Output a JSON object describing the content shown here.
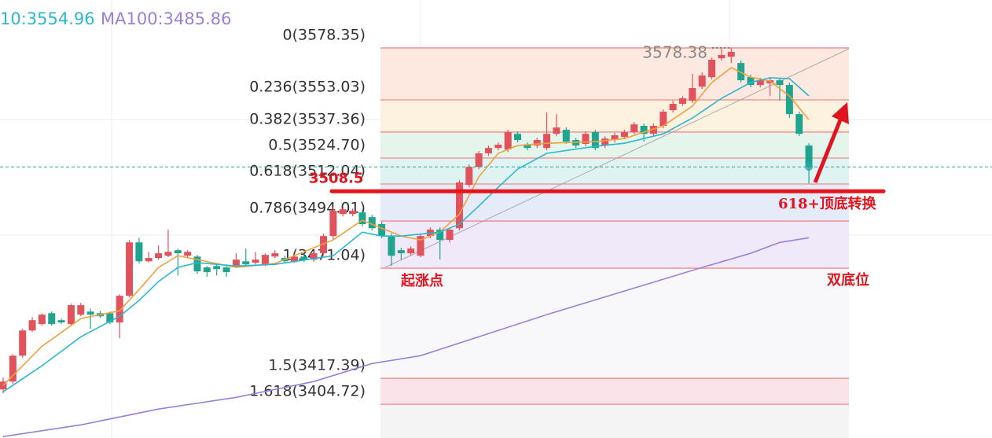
{
  "chart_data": {
    "type": "candlestick",
    "ylim": [
      3388.3,
      3601.7
    ],
    "up_color": "#e0525c",
    "down_color": "#1fa58f",
    "ohlc": [
      [
        3412.0,
        3417.7,
        3410.0,
        3415.8
      ],
      [
        3415.8,
        3429.2,
        3414.6,
        3428.4
      ],
      [
        3428.4,
        3441.5,
        3427.3,
        3440.7
      ],
      [
        3440.7,
        3447.2,
        3439.9,
        3445.7
      ],
      [
        3443.8,
        3449.1,
        3443.0,
        3448.4
      ],
      [
        3449.1,
        3449.9,
        3443.0,
        3443.8
      ],
      [
        3445.7,
        3446.5,
        3443.8,
        3444.6
      ],
      [
        3443.8,
        3453.7,
        3443.0,
        3453.0
      ],
      [
        3448.4,
        3454.1,
        3447.6,
        3453.0
      ],
      [
        3449.9,
        3451.4,
        3441.5,
        3448.4
      ],
      [
        3449.1,
        3450.3,
        3446.8,
        3447.6
      ],
      [
        3449.1,
        3449.9,
        3443.8,
        3444.6
      ],
      [
        3444.6,
        3458.3,
        3436.9,
        3457.6
      ],
      [
        3457.6,
        3484.8,
        3456.8,
        3483.6
      ],
      [
        3483.6,
        3485.9,
        3473.3,
        3474.4
      ],
      [
        3474.4,
        3479.0,
        3473.7,
        3476.0
      ],
      [
        3476.0,
        3482.1,
        3475.2,
        3478.3
      ],
      [
        3477.1,
        3489.8,
        3476.4,
        3479.0
      ],
      [
        3479.8,
        3480.6,
        3467.5,
        3478.3
      ],
      [
        3477.1,
        3479.8,
        3476.4,
        3479.0
      ],
      [
        3476.7,
        3477.5,
        3468.3,
        3469.5
      ],
      [
        3471.4,
        3472.1,
        3466.8,
        3469.1
      ],
      [
        3472.1,
        3472.9,
        3467.5,
        3470.6
      ],
      [
        3471.4,
        3472.9,
        3466.8,
        3469.1
      ],
      [
        3472.1,
        3478.3,
        3471.4,
        3475.2
      ],
      [
        3474.4,
        3480.6,
        3472.1,
        3472.9
      ],
      [
        3473.7,
        3479.0,
        3472.9,
        3475.2
      ],
      [
        3472.9,
        3478.3,
        3472.1,
        3477.5
      ],
      [
        3476.7,
        3479.8,
        3476.0,
        3478.3
      ],
      [
        3476.0,
        3477.1,
        3473.3,
        3474.4
      ],
      [
        3474.4,
        3477.9,
        3473.7,
        3476.7
      ],
      [
        3476.7,
        3477.9,
        3474.1,
        3475.2
      ],
      [
        3475.2,
        3479.4,
        3474.1,
        3478.3
      ],
      [
        3478.3,
        3487.9,
        3477.1,
        3486.7
      ],
      [
        3486.7,
        3501.3,
        3484.8,
        3499.0
      ],
      [
        3497.4,
        3500.9,
        3496.3,
        3499.7
      ],
      [
        3497.4,
        3500.1,
        3496.3,
        3499.0
      ],
      [
        3498.2,
        3499.4,
        3491.3,
        3492.5
      ],
      [
        3495.9,
        3497.1,
        3489.4,
        3490.5
      ],
      [
        3492.5,
        3493.6,
        3485.6,
        3486.7
      ],
      [
        3486.7,
        3487.9,
        3472.1,
        3477.1
      ],
      [
        3479.8,
        3481.0,
        3475.2,
        3478.3
      ],
      [
        3478.3,
        3481.7,
        3477.1,
        3480.6
      ],
      [
        3477.1,
        3487.9,
        3476.4,
        3486.7
      ],
      [
        3486.7,
        3490.9,
        3485.6,
        3489.8
      ],
      [
        3489.8,
        3490.9,
        3475.2,
        3484.8
      ],
      [
        3484.8,
        3490.9,
        3483.6,
        3489.8
      ],
      [
        3490.5,
        3513.9,
        3489.4,
        3512.8
      ],
      [
        3511.6,
        3521.6,
        3510.5,
        3520.4
      ],
      [
        3520.4,
        3528.1,
        3519.3,
        3527.0
      ],
      [
        3527.0,
        3530.8,
        3525.8,
        3529.6
      ],
      [
        3529.6,
        3532.3,
        3528.5,
        3531.2
      ],
      [
        3528.9,
        3538.5,
        3527.7,
        3537.3
      ],
      [
        3536.5,
        3537.7,
        3532.3,
        3533.5
      ],
      [
        3531.2,
        3532.3,
        3528.5,
        3529.6
      ],
      [
        3530.8,
        3534.6,
        3529.6,
        3533.5
      ],
      [
        3529.6,
        3546.9,
        3528.5,
        3536.5
      ],
      [
        3536.5,
        3546.1,
        3535.4,
        3539.6
      ],
      [
        3538.5,
        3539.6,
        3531.6,
        3532.7
      ],
      [
        3533.5,
        3534.6,
        3529.6,
        3530.8
      ],
      [
        3531.6,
        3537.7,
        3530.4,
        3536.5
      ],
      [
        3537.3,
        3538.5,
        3528.5,
        3529.6
      ],
      [
        3530.8,
        3535.4,
        3529.6,
        3534.2
      ],
      [
        3533.5,
        3536.9,
        3532.3,
        3535.8
      ],
      [
        3535.0,
        3538.5,
        3533.9,
        3537.3
      ],
      [
        3537.3,
        3542.3,
        3536.2,
        3541.1
      ],
      [
        3540.4,
        3541.5,
        3532.7,
        3536.5
      ],
      [
        3536.5,
        3541.5,
        3535.4,
        3540.4
      ],
      [
        3540.4,
        3548.4,
        3539.2,
        3547.3
      ],
      [
        3548.0,
        3552.6,
        3546.9,
        3551.1
      ],
      [
        3551.1,
        3554.9,
        3550.0,
        3553.8
      ],
      [
        3552.6,
        3565.7,
        3551.5,
        3558.8
      ],
      [
        3559.5,
        3566.4,
        3558.4,
        3564.9
      ],
      [
        3564.1,
        3573.7,
        3563.0,
        3572.6
      ],
      [
        3573.3,
        3577.9,
        3572.2,
        3574.9
      ],
      [
        3574.1,
        3578.38,
        3571.0,
        3576.4
      ],
      [
        3571.0,
        3572.2,
        3561.5,
        3562.6
      ],
      [
        3564.1,
        3565.3,
        3559.2,
        3560.3
      ],
      [
        3560.3,
        3563.8,
        3559.2,
        3562.6
      ],
      [
        3561.1,
        3563.8,
        3554.9,
        3562.6
      ],
      [
        3562.6,
        3563.8,
        3552.6,
        3560.3
      ],
      [
        3560.3,
        3561.5,
        3544.2,
        3546.1
      ],
      [
        3546.1,
        3547.3,
        3535.4,
        3536.5
      ],
      [
        3530.8,
        3531.9,
        3512.4,
        3520.4
      ]
    ],
    "ma_lines": [
      {
        "color": "#f0a03c",
        "x": [
          0,
          4,
          8,
          12,
          14,
          16,
          18,
          20,
          24,
          28,
          34,
          37,
          39,
          41,
          43,
          45,
          47,
          49,
          51,
          53,
          56,
          61,
          64,
          68,
          71,
          73,
          75,
          77,
          79,
          81,
          83
        ],
        "values": [
          3413.9,
          3433.0,
          3446.5,
          3450.3,
          3460.6,
          3471.4,
          3477.1,
          3475.2,
          3471.4,
          3473.3,
          3484.8,
          3494.4,
          3490.5,
          3486.7,
          3484.8,
          3488.6,
          3497.4,
          3515.5,
          3527.0,
          3530.8,
          3531.9,
          3532.7,
          3534.2,
          3540.4,
          3550.0,
          3561.5,
          3568.7,
          3564.1,
          3562.2,
          3554.9,
          3543.4
        ]
      },
      {
        "name": "10:3554.96",
        "color": "#2bb7cf",
        "x": [
          0,
          4,
          8,
          12,
          14,
          16,
          18,
          20,
          24,
          28,
          34,
          37,
          39,
          41,
          45,
          47,
          49,
          51,
          53,
          56,
          61,
          64,
          68,
          71,
          74,
          77,
          79,
          81,
          83
        ],
        "values": [
          3410.8,
          3423.5,
          3437.6,
          3447.6,
          3455.3,
          3464.5,
          3471.4,
          3473.7,
          3472.1,
          3472.9,
          3477.1,
          3488.6,
          3486.7,
          3486.7,
          3488.6,
          3492.5,
          3501.3,
          3510.5,
          3519.3,
          3527.0,
          3530.4,
          3531.9,
          3536.5,
          3544.2,
          3553.8,
          3561.5,
          3563.8,
          3563.4,
          3554.96
        ]
      },
      {
        "name": "MA100:3485.86",
        "color": "#9b7fd8",
        "x": [
          0,
          8,
          16,
          24,
          32,
          38,
          43,
          48,
          56,
          64,
          72,
          77,
          80,
          83
        ],
        "values": [
          3389.0,
          3394.7,
          3402.4,
          3408.1,
          3415.8,
          3424.6,
          3428.4,
          3436.1,
          3448.4,
          3459.9,
          3471.4,
          3478.3,
          3483.6,
          3485.86
        ]
      }
    ],
    "fib_levels": [
      {
        "value": 3578.35,
        "label": "0(3578.35)"
      },
      {
        "value": 3553.03,
        "label": "0.236(3553.03)"
      },
      {
        "value": 3537.36,
        "label": "0.382(3537.36)"
      },
      {
        "value": 3524.7,
        "label": "0.5(3524.70)"
      },
      {
        "value": 3512.04,
        "label": "0.618(3512.04)"
      },
      {
        "value": 3494.01,
        "label": "0.786(3494.01)"
      },
      {
        "value": 3471.04,
        "label": "1(3471.04)"
      },
      {
        "value": 3417.39,
        "label": "1.5(3417.39)"
      },
      {
        "value": 3404.72,
        "label": "1.618(3404.72)"
      }
    ],
    "fib_colors": [
      "#fde9df",
      "#fdf2df",
      "#e5f5eb",
      "#e0f3f3",
      "#e6ebfa",
      "#efe9fa",
      "#f8f8fa",
      "#fbe3ea",
      "#f4f4f4"
    ],
    "support_level": 3508.5,
    "high_label": 3578.38,
    "annotations": [
      "起涨点",
      "618+顶底转换",
      "双底位"
    ]
  }
}
